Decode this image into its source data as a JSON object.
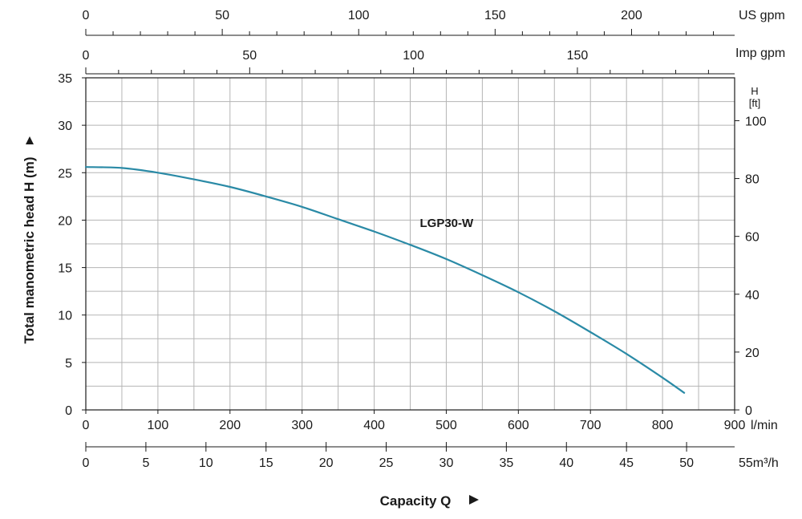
{
  "chart_data": {
    "type": "line",
    "title": "",
    "xlabel": "Capacity Q",
    "ylabel": "Total manometric head H (m)",
    "x_unit": "l/min",
    "xlim": [
      0,
      900
    ],
    "ylim": [
      0,
      35
    ],
    "x_ticks": [
      0,
      100,
      200,
      300,
      400,
      500,
      600,
      700,
      800,
      900
    ],
    "y_ticks": [
      0,
      5,
      10,
      15,
      20,
      25,
      30,
      35
    ],
    "grid": true,
    "series": [
      {
        "name": "LGP30-W",
        "x": [
          0,
          50,
          100,
          150,
          200,
          250,
          300,
          350,
          400,
          450,
          500,
          550,
          600,
          650,
          700,
          750,
          800,
          830
        ],
        "y": [
          25.6,
          25.5,
          25.0,
          24.3,
          23.5,
          22.5,
          21.4,
          20.1,
          18.8,
          17.4,
          15.9,
          14.2,
          12.4,
          10.4,
          8.2,
          5.9,
          3.4,
          1.8
        ]
      }
    ],
    "secondary_axes": {
      "us_gpm": {
        "label": "US gpm",
        "ticks": [
          0,
          50,
          100,
          150,
          200
        ],
        "ratio_to_lmin": 3.785
      },
      "imp_gpm": {
        "label": "Imp gpm",
        "ticks": [
          0,
          50,
          100,
          150
        ],
        "ratio_to_lmin": 4.546
      },
      "m3h": {
        "label": "m³/h",
        "unit_prefix": "55",
        "ticks": [
          0,
          5,
          10,
          15,
          20,
          25,
          30,
          35,
          40,
          45,
          50
        ],
        "ratio_to_lmin": 16.667
      },
      "feet": {
        "label_top": "H",
        "label_bottom": "[ft]",
        "ticks": [
          0,
          20,
          40,
          60,
          80,
          100
        ],
        "ratio_to_m": 3.2808
      }
    },
    "colors": {
      "curve": "#2a8aa6",
      "grid": "#b5b5b5",
      "axis": "#1a1a1a",
      "minor_grid": "#d0d0d0"
    }
  }
}
